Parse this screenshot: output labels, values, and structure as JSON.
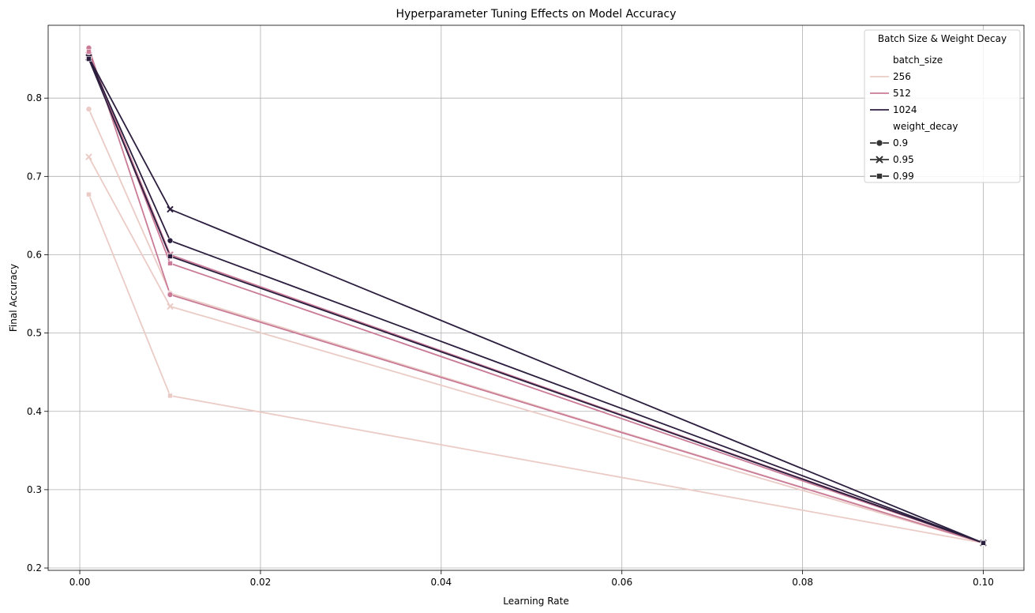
{
  "chart_data": {
    "type": "line",
    "title": "Hyperparameter Tuning Effects on Model Accuracy",
    "xlabel": "Learning Rate",
    "ylabel": "Final Accuracy",
    "xlim": [
      -0.0035,
      0.1045
    ],
    "ylim": [
      0.197,
      0.893
    ],
    "xticks": [
      0.0,
      0.02,
      0.04,
      0.06,
      0.08,
      0.1
    ],
    "xtick_labels": [
      "0.00",
      "0.02",
      "0.04",
      "0.06",
      "0.08",
      "0.10"
    ],
    "yticks": [
      0.2,
      0.3,
      0.4,
      0.5,
      0.6,
      0.7,
      0.8
    ],
    "ytick_labels": [
      "0.2",
      "0.3",
      "0.4",
      "0.5",
      "0.6",
      "0.7",
      "0.8"
    ],
    "grid": true,
    "legend": {
      "title": "Batch Size & Weight Decay",
      "location": "upper right",
      "hue_title": "batch_size",
      "hue_entries": [
        {
          "label": "256",
          "color": "#ebcbc5"
        },
        {
          "label": "512",
          "color": "#c97b97"
        },
        {
          "label": "1024",
          "color": "#2b1e3e"
        }
      ],
      "style_title": "weight_decay",
      "style_entries": [
        {
          "label": "0.9",
          "marker": "circle"
        },
        {
          "label": "0.95",
          "marker": "x"
        },
        {
          "label": "0.99",
          "marker": "square"
        }
      ],
      "style_color": "#333333"
    },
    "series": [
      {
        "batch_size": "256",
        "weight_decay": "0.9",
        "color": "#ebcbc5",
        "marker": "circle",
        "x": [
          0.001,
          0.01,
          0.1
        ],
        "y": [
          0.786,
          0.551,
          0.232
        ]
      },
      {
        "batch_size": "256",
        "weight_decay": "0.95",
        "color": "#ebcbc5",
        "marker": "x",
        "x": [
          0.001,
          0.01,
          0.1
        ],
        "y": [
          0.725,
          0.534,
          0.232
        ]
      },
      {
        "batch_size": "256",
        "weight_decay": "0.99",
        "color": "#ebcbc5",
        "marker": "square",
        "x": [
          0.001,
          0.01,
          0.1
        ],
        "y": [
          0.677,
          0.42,
          0.232
        ]
      },
      {
        "batch_size": "512",
        "weight_decay": "0.9",
        "color": "#c97b97",
        "marker": "circle",
        "x": [
          0.001,
          0.01,
          0.1
        ],
        "y": [
          0.864,
          0.549,
          0.232
        ]
      },
      {
        "batch_size": "512",
        "weight_decay": "0.95",
        "color": "#c97b97",
        "marker": "x",
        "x": [
          0.001,
          0.01,
          0.1
        ],
        "y": [
          0.855,
          0.6,
          0.232
        ]
      },
      {
        "batch_size": "512",
        "weight_decay": "0.99",
        "color": "#c97b97",
        "marker": "square",
        "x": [
          0.001,
          0.01,
          0.1
        ],
        "y": [
          0.859,
          0.589,
          0.232
        ]
      },
      {
        "batch_size": "1024",
        "weight_decay": "0.9",
        "color": "#2b1e3e",
        "marker": "circle",
        "x": [
          0.001,
          0.01,
          0.1
        ],
        "y": [
          0.852,
          0.618,
          0.232
        ]
      },
      {
        "batch_size": "1024",
        "weight_decay": "0.95",
        "color": "#2b1e3e",
        "marker": "x",
        "x": [
          0.001,
          0.01,
          0.1
        ],
        "y": [
          0.852,
          0.658,
          0.232
        ]
      },
      {
        "batch_size": "1024",
        "weight_decay": "0.99",
        "color": "#2b1e3e",
        "marker": "square",
        "x": [
          0.001,
          0.01,
          0.1
        ],
        "y": [
          0.85,
          0.598,
          0.232
        ]
      }
    ]
  }
}
